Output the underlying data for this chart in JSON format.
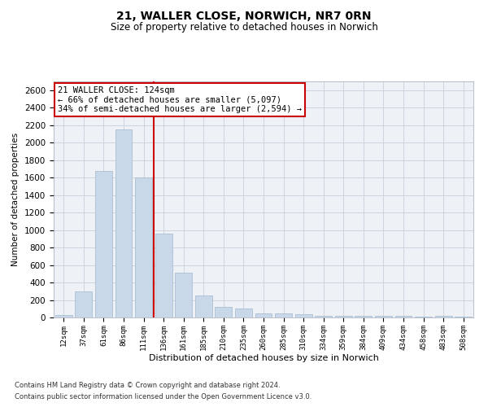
{
  "title": "21, WALLER CLOSE, NORWICH, NR7 0RN",
  "subtitle": "Size of property relative to detached houses in Norwich",
  "xlabel": "Distribution of detached houses by size in Norwich",
  "ylabel": "Number of detached properties",
  "bar_color": "#c8d8e8",
  "bar_edge_color": "#a0b8cc",
  "categories": [
    "12sqm",
    "37sqm",
    "61sqm",
    "86sqm",
    "111sqm",
    "136sqm",
    "161sqm",
    "185sqm",
    "210sqm",
    "235sqm",
    "260sqm",
    "285sqm",
    "310sqm",
    "334sqm",
    "359sqm",
    "384sqm",
    "409sqm",
    "434sqm",
    "458sqm",
    "483sqm",
    "508sqm"
  ],
  "values": [
    25,
    300,
    1680,
    2150,
    1600,
    960,
    510,
    250,
    125,
    105,
    50,
    50,
    35,
    20,
    20,
    20,
    20,
    20,
    5,
    20,
    5
  ],
  "vline_x": 4.5,
  "vline_color": "#cc0000",
  "ylim": [
    0,
    2700
  ],
  "yticks": [
    0,
    200,
    400,
    600,
    800,
    1000,
    1200,
    1400,
    1600,
    1800,
    2000,
    2200,
    2400,
    2600
  ],
  "annotation_line1": "21 WALLER CLOSE: 124sqm",
  "annotation_line2": "← 66% of detached houses are smaller (5,097)",
  "annotation_line3": "34% of semi-detached houses are larger (2,594) →",
  "footer1": "Contains HM Land Registry data © Crown copyright and database right 2024.",
  "footer2": "Contains public sector information licensed under the Open Government Licence v3.0.",
  "background_color": "#eef2f7",
  "grid_color": "#c8d0dc",
  "title_fontsize": 10,
  "subtitle_fontsize": 8.5,
  "ylabel_fontsize": 7.5,
  "xlabel_fontsize": 8,
  "ytick_fontsize": 7.5,
  "xtick_fontsize": 6.5,
  "annotation_fontsize": 7.5,
  "footer_fontsize": 6
}
